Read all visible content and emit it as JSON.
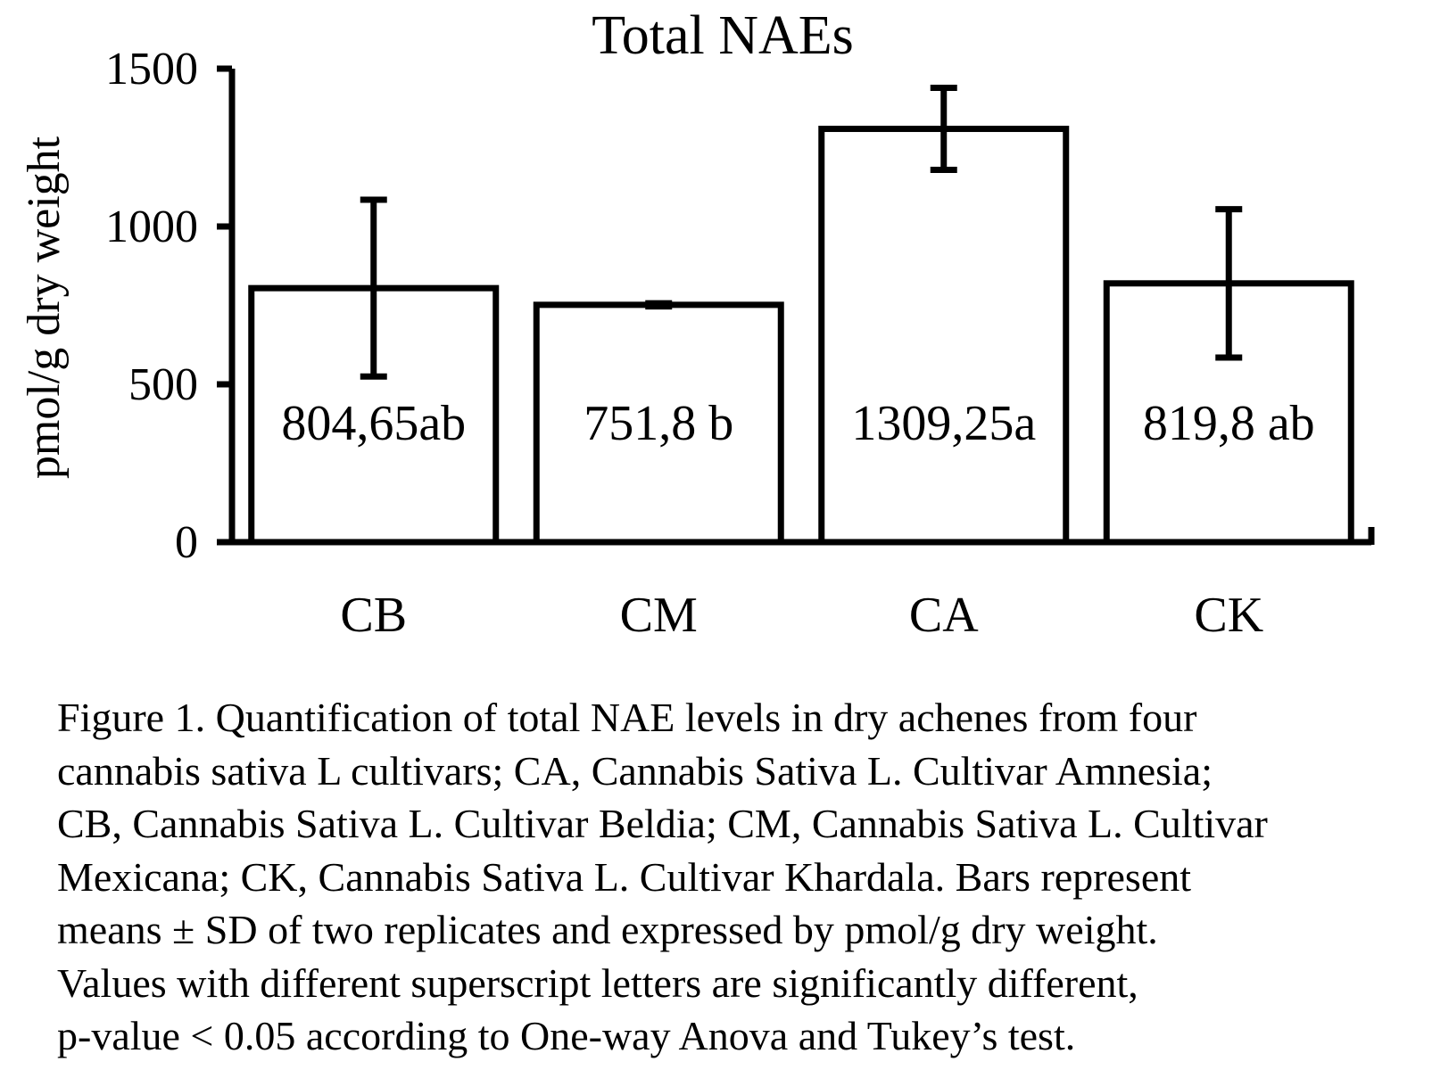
{
  "chart_data": {
    "type": "bar",
    "title": "Total NAEs",
    "xlabel": "",
    "ylabel": "pmol/g dry weight",
    "ylim": [
      0,
      1500
    ],
    "yticks": [
      0,
      500,
      1000,
      1500
    ],
    "categories": [
      "CB",
      "CM",
      "CA",
      "CK"
    ],
    "values": [
      804.65,
      751.8,
      1309.25,
      819.8
    ],
    "errors": [
      280,
      5,
      130,
      235
    ],
    "data_labels": [
      "804,65ab",
      "751,8 b",
      "1309,25a",
      "819,8 ab"
    ],
    "grid": false,
    "legend": "none"
  },
  "caption": {
    "lines": [
      "Figure 1. Quantification of total NAE levels in dry achenes from four",
      "cannabis sativa L cultivars; CA, Cannabis Sativa L. Cultivar Amnesia;",
      "CB, Cannabis Sativa L. Cultivar Beldia; CM, Cannabis Sativa L. Cultivar",
      "Mexicana; CK, Cannabis Sativa L. Cultivar Khardala. Bars represent",
      "means ± SD of two replicates and expressed by pmol/g dry weight.",
      "Values with different superscript letters are significantly different,",
      "p-value < 0.05 according to One-way Anova and Tukey’s test."
    ]
  }
}
